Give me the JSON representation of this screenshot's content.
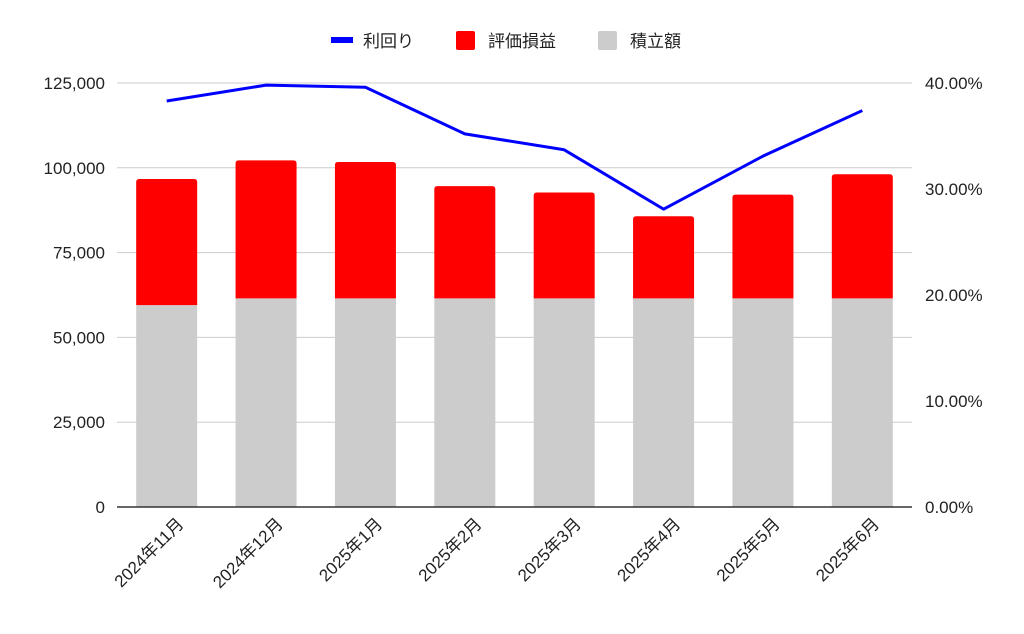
{
  "chart_data": {
    "type": "bar",
    "stacked": true,
    "title": "",
    "categories": [
      "2024年11月",
      "2024年12月",
      "2025年1月",
      "2025年2月",
      "2025年3月",
      "2025年4月",
      "2025年5月",
      "2025年6月"
    ],
    "series": [
      {
        "name": "積立額",
        "kind": "bar",
        "axis": "left",
        "color": "#cccccc",
        "values": [
          59500,
          61500,
          61500,
          61500,
          61500,
          61500,
          61500,
          61500
        ]
      },
      {
        "name": "評価損益",
        "kind": "bar",
        "axis": "left",
        "color": "#ff0000",
        "values": [
          37200,
          40700,
          40200,
          33100,
          31200,
          24200,
          30600,
          36600
        ]
      },
      {
        "name": "利回り",
        "kind": "line",
        "axis": "right",
        "color": "#0000ff",
        "values": [
          0.383,
          0.398,
          0.396,
          0.352,
          0.337,
          0.281,
          0.331,
          0.374
        ]
      }
    ],
    "legend_order": [
      "利回り",
      "評価損益",
      "積立額"
    ],
    "legend_position": "top-center",
    "ylim_left": [
      0,
      125000
    ],
    "ylim_right": [
      0,
      0.4
    ],
    "y_ticks_left": [
      "0",
      "25,000",
      "50,000",
      "75,000",
      "100,000",
      "125,000"
    ],
    "y_ticks_right": [
      "0.00%",
      "10.00%",
      "20.00%",
      "30.00%",
      "40.00%"
    ],
    "gridlines": true
  }
}
